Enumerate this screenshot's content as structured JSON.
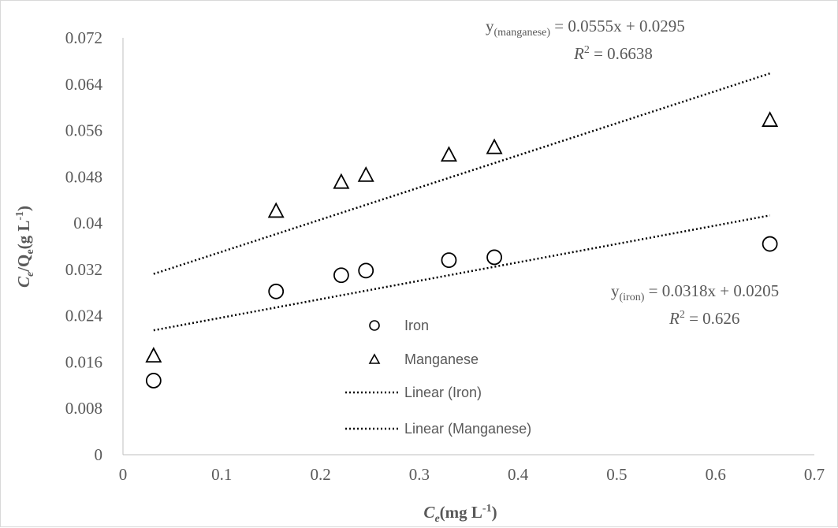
{
  "chart_data": {
    "type": "scatter",
    "x_ticks": [
      "0",
      "0.1",
      "0.2",
      "0.3",
      "0.4",
      "0.5",
      "0.6",
      "0.7"
    ],
    "y_ticks": [
      "0",
      "0.008",
      "0.016",
      "0.024",
      "0.032",
      "0.04",
      "0.048",
      "0.056",
      "0.064",
      "0.072"
    ],
    "xlim": [
      0,
      0.7
    ],
    "ylim": [
      0,
      0.072
    ],
    "xlabel": {
      "main": "C",
      "sub": "e",
      "unit": "(mg L",
      "sup": "-1",
      "close": ")"
    },
    "ylabel": {
      "c": "C",
      "csub": "e",
      "q": "/Q",
      "qsub": "e",
      "unit": "(g L",
      "sup": "-1",
      "close": ")"
    },
    "grid": false,
    "legend_position": "center",
    "series": [
      {
        "name": "Iron",
        "marker": "circle",
        "x": [
          0.031,
          0.155,
          0.221,
          0.246,
          0.33,
          0.376,
          0.655
        ],
        "y": [
          0.0128,
          0.0282,
          0.031,
          0.0318,
          0.0336,
          0.0341,
          0.0364
        ]
      },
      {
        "name": "Manganese",
        "marker": "triangle",
        "x": [
          0.031,
          0.155,
          0.221,
          0.246,
          0.33,
          0.376,
          0.655
        ],
        "y": [
          0.017,
          0.042,
          0.047,
          0.0482,
          0.0517,
          0.053,
          0.0577
        ]
      }
    ],
    "trendlines": [
      {
        "name": "Linear (Iron)",
        "slope": 0.0318,
        "intercept": 0.0205,
        "x_range": [
          0.031,
          0.655
        ]
      },
      {
        "name": "Linear (Manganese)",
        "slope": 0.0555,
        "intercept": 0.0295,
        "x_range": [
          0.031,
          0.655
        ]
      }
    ],
    "annotations": {
      "manganese_eq": {
        "y": "y",
        "sub": "(manganese)",
        "rest": " = 0.0555x + 0.0295",
        "r": "R",
        "r_rest": " = 0.6638",
        "sq": "2"
      },
      "iron_eq": {
        "y": "y",
        "sub": "(iron)",
        "rest": " = 0.0318x + 0.0205",
        "r": "R",
        "r_rest": " = 0.626",
        "sq": "2"
      }
    },
    "colors": {
      "axis": "#bfbfbf",
      "text": "#595959",
      "marker": "#000000"
    }
  }
}
